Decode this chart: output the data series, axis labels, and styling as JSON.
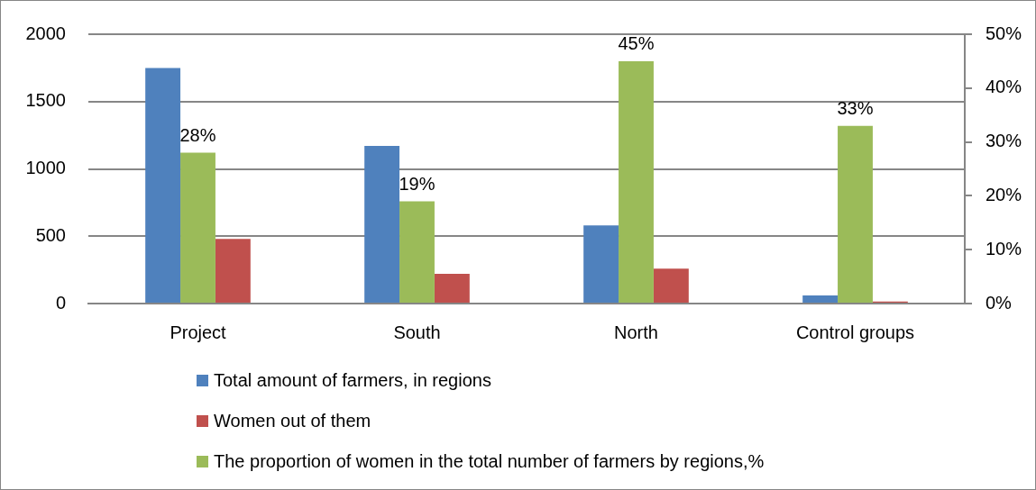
{
  "chart_data": {
    "type": "bar",
    "categories": [
      "Project",
      "South",
      "North",
      "Control groups"
    ],
    "series": [
      {
        "name": "Total amount of farmers, in regions",
        "color": "#4f81bd",
        "values": [
          1750,
          1170,
          580,
          60
        ]
      },
      {
        "name": "Women out of them",
        "color": "#c0504d",
        "values": [
          480,
          220,
          260,
          15
        ]
      },
      {
        "name": "The proportion of women in the total number of farmers by regions,%",
        "color": "#9bbb59",
        "axis": "y2",
        "values": [
          28,
          19,
          45,
          33
        ],
        "value_labels": [
          "28%",
          "19%",
          "45%",
          "33%"
        ]
      }
    ],
    "ylim": [
      0,
      2000
    ],
    "yticks": [
      0,
      500,
      1000,
      1500,
      2000
    ],
    "y2lim": [
      0,
      50
    ],
    "y2ticks": [
      {
        "value": 0,
        "label": "0%"
      },
      {
        "value": 10,
        "label": "10%"
      },
      {
        "value": 20,
        "label": "20%"
      },
      {
        "value": 30,
        "label": "30%"
      },
      {
        "value": 40,
        "label": "40%"
      },
      {
        "value": 50,
        "label": "50%"
      }
    ],
    "grid": "y",
    "legend": "bottom"
  }
}
